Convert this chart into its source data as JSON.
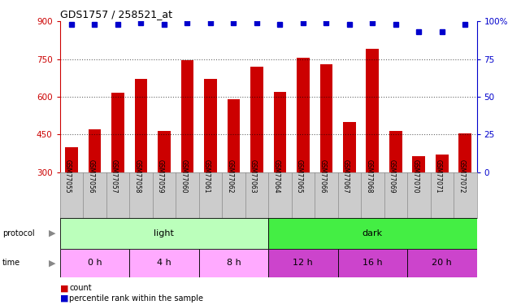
{
  "title": "GDS1757 / 258521_at",
  "samples": [
    "GSM77055",
    "GSM77056",
    "GSM77057",
    "GSM77058",
    "GSM77059",
    "GSM77060",
    "GSM77061",
    "GSM77062",
    "GSM77063",
    "GSM77064",
    "GSM77065",
    "GSM77066",
    "GSM77067",
    "GSM77068",
    "GSM77069",
    "GSM77070",
    "GSM77071",
    "GSM77072"
  ],
  "counts": [
    400,
    470,
    615,
    670,
    465,
    745,
    670,
    590,
    720,
    620,
    755,
    730,
    500,
    790,
    465,
    365,
    370,
    455
  ],
  "percentile_ranks": [
    98,
    98,
    98,
    99,
    98,
    99,
    99,
    99,
    99,
    98,
    99,
    99,
    98,
    99,
    98,
    93,
    93,
    98
  ],
  "bar_color": "#cc0000",
  "dot_color": "#0000cc",
  "ylim_left": [
    300,
    900
  ],
  "ylim_right": [
    0,
    100
  ],
  "yticks_left": [
    300,
    450,
    600,
    750,
    900
  ],
  "yticks_right": [
    0,
    25,
    50,
    75,
    100
  ],
  "protocol_groups": [
    {
      "label": "light",
      "start": 0,
      "end": 9,
      "color": "#bbffbb"
    },
    {
      "label": "dark",
      "start": 9,
      "end": 18,
      "color": "#44ee44"
    }
  ],
  "time_groups": [
    {
      "label": "0 h",
      "start": 0,
      "end": 3,
      "color": "#ffaaff"
    },
    {
      "label": "4 h",
      "start": 3,
      "end": 6,
      "color": "#ffaaff"
    },
    {
      "label": "8 h",
      "start": 6,
      "end": 9,
      "color": "#ffaaff"
    },
    {
      "label": "12 h",
      "start": 9,
      "end": 12,
      "color": "#cc44cc"
    },
    {
      "label": "16 h",
      "start": 12,
      "end": 15,
      "color": "#cc44cc"
    },
    {
      "label": "20 h",
      "start": 15,
      "end": 18,
      "color": "#cc44cc"
    }
  ],
  "bg_color": "#ffffff",
  "sample_area_color": "#cccccc",
  "left_axis_color": "#cc0000",
  "right_axis_color": "#0000cc",
  "grid_yticks": [
    450,
    600,
    750
  ],
  "dotted_line_color": "#555555"
}
